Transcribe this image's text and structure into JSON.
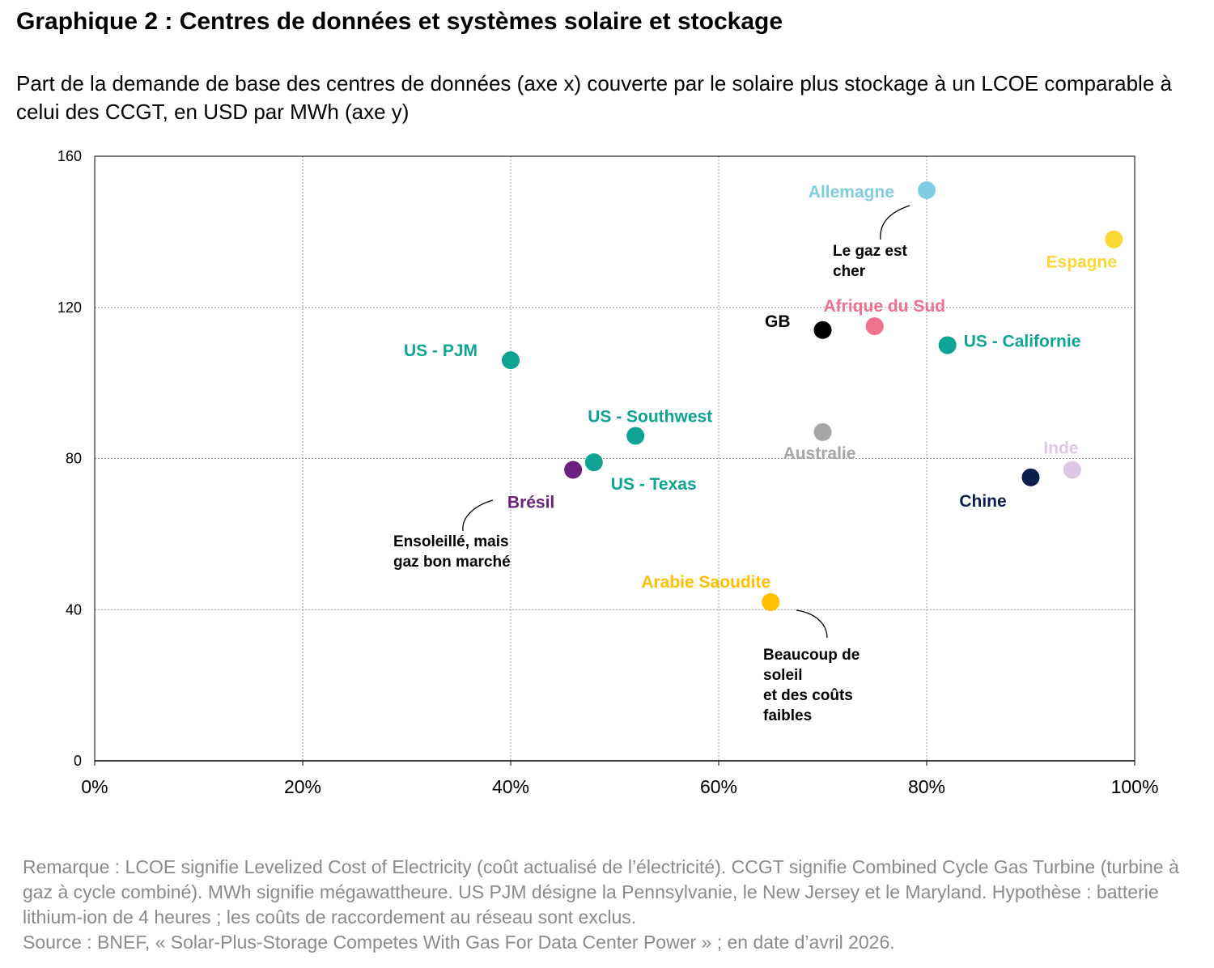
{
  "title": "Graphique 2 : Centres de données et systèmes solaire et stockage",
  "subtitle": "Part de la demande de base des centres de données (axe x) couverte par le solaire plus stockage à un LCOE comparable à celui des CCGT, en USD par MWh (axe y)",
  "note": "Remarque : LCOE signifie Levelized Cost of Electricity (coût actualisé de l’électricité). CCGT signifie Combined Cycle Gas Turbine (turbine à gaz à cycle combiné). MWh signifie mégawattheure. US PJM désigne la Pennsylvanie, le New Jersey et le Maryland. Hypothèse : batterie lithium-ion de 4 heures ; les coûts de raccordement au réseau sont exclus.",
  "source": "Source : BNEF, « Solar-Plus-Storage Competes With Gas For Data Center Power » ; en date d’avril 2026.",
  "chart_data": {
    "type": "scatter",
    "xlim": [
      0,
      100
    ],
    "ylim": [
      0,
      160
    ],
    "x_ticks": [
      "0%",
      "20%",
      "40%",
      "60%",
      "80%",
      "100%"
    ],
    "y_ticks": [
      "0",
      "40",
      "80",
      "120",
      "160"
    ],
    "grid": true,
    "points": [
      {
        "label": "Allemagne",
        "x": 80,
        "y": 151,
        "color": "#7ecde3"
      },
      {
        "label": "Espagne",
        "x": 98,
        "y": 138,
        "color": "#fcd837"
      },
      {
        "label": "GB",
        "x": 70,
        "y": 114,
        "color": "#000000"
      },
      {
        "label": "Afrique du Sud",
        "x": 75,
        "y": 115,
        "color": "#f0708e"
      },
      {
        "label": "US - Californie",
        "x": 82,
        "y": 110,
        "color": "#0ea393"
      },
      {
        "label": "US - PJM",
        "x": 40,
        "y": 106,
        "color": "#0ea393"
      },
      {
        "label": "US - Southwest",
        "x": 52,
        "y": 86,
        "color": "#0ea393"
      },
      {
        "label": "Australie",
        "x": 70,
        "y": 87,
        "color": "#a6a6a6"
      },
      {
        "label": "US - Texas",
        "x": 48,
        "y": 79,
        "color": "#0ea393"
      },
      {
        "label": "Brésil",
        "x": 46,
        "y": 77,
        "color": "#6b1f7f"
      },
      {
        "label": "Inde",
        "x": 94,
        "y": 77,
        "color": "#dcc8e4"
      },
      {
        "label": "Chine",
        "x": 90,
        "y": 75,
        "color": "#0b1f4f"
      },
      {
        "label": "Arabie Saoudite",
        "x": 65,
        "y": 42,
        "color": "#ffbf00"
      }
    ],
    "annotations": [
      {
        "lines": [
          "Le gaz est",
          "cher"
        ]
      },
      {
        "lines": [
          "Ensoleillé, mais",
          "gaz bon marché"
        ]
      },
      {
        "lines": [
          "Beaucoup de",
          "soleil",
          "et des coûts",
          "faibles"
        ]
      }
    ]
  }
}
